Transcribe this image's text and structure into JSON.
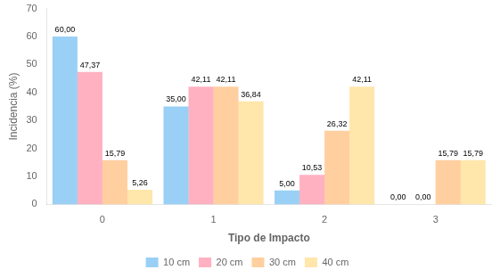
{
  "chart_data": {
    "type": "bar",
    "xlabel": "Tipo de Impacto",
    "ylabel": "Incidencia (%)",
    "categories": [
      "0",
      "1",
      "2",
      "3"
    ],
    "series": [
      {
        "name": "10 cm",
        "values": [
          60.0,
          35.0,
          5.0,
          0.0
        ],
        "value_labels": [
          "60,00",
          "35,00",
          "5,00",
          "0,00"
        ]
      },
      {
        "name": "20 cm",
        "values": [
          47.37,
          42.11,
          10.53,
          0.0
        ],
        "value_labels": [
          "47,37",
          "42,11",
          "10,53",
          "0,00"
        ]
      },
      {
        "name": "30 cm",
        "values": [
          15.79,
          42.11,
          26.32,
          15.79
        ],
        "value_labels": [
          "15,79",
          "42,11",
          "26,32",
          "15,79"
        ]
      },
      {
        "name": "40 cm",
        "values": [
          5.26,
          36.84,
          42.11,
          15.79
        ],
        "value_labels": [
          "5,26",
          "36,84",
          "42,11",
          "15,79"
        ]
      }
    ],
    "ylim": [
      0,
      70
    ],
    "yticks": [
      0,
      10,
      20,
      30,
      40,
      50,
      60,
      70
    ],
    "grid": false,
    "legend": "bottom",
    "data_labels": true
  }
}
